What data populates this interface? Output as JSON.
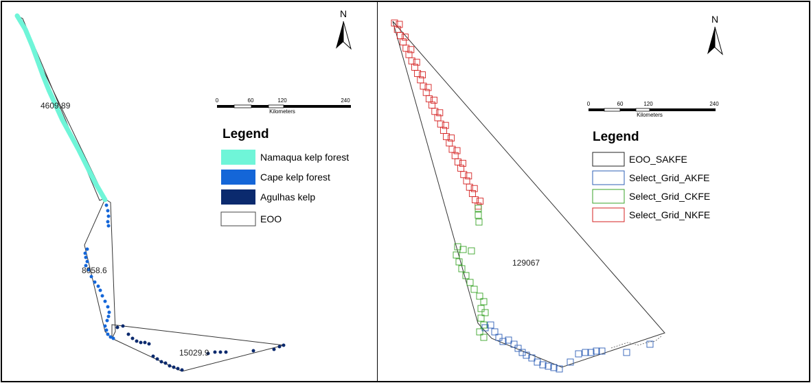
{
  "left_map": {
    "north_label": "N",
    "scale": {
      "ticks": [
        "0",
        "60",
        "120",
        "240"
      ],
      "unit": "Kilometers"
    },
    "legend": {
      "title": "Legend",
      "items": [
        {
          "label": "Namaqua kelp forest",
          "color": "#6ff5d8",
          "style": "fill"
        },
        {
          "label": "Cape kelp forest",
          "color": "#1466d8",
          "style": "fill"
        },
        {
          "label": "Agulhas kelp",
          "color": "#0b2a6e",
          "style": "fill"
        },
        {
          "label": "EOO",
          "color": "#444444",
          "style": "outline"
        }
      ]
    },
    "eoo_labels": [
      "4609.89",
      "8058.6",
      "15029.9"
    ]
  },
  "right_map": {
    "north_label": "N",
    "scale": {
      "ticks": [
        "0",
        "60",
        "120",
        "240"
      ],
      "unit": "Kilometers"
    },
    "legend": {
      "title": "Legend",
      "items": [
        {
          "label": "EOO_SAKFE",
          "color": "#222222"
        },
        {
          "label": "Select_Grid_AKFE",
          "color": "#2e5fb5"
        },
        {
          "label": "Select_Grid_CKFE",
          "color": "#3aa32a"
        },
        {
          "label": "Select_Grid_NKFE",
          "color": "#d42020"
        }
      ]
    },
    "eoo_label": "129067"
  }
}
